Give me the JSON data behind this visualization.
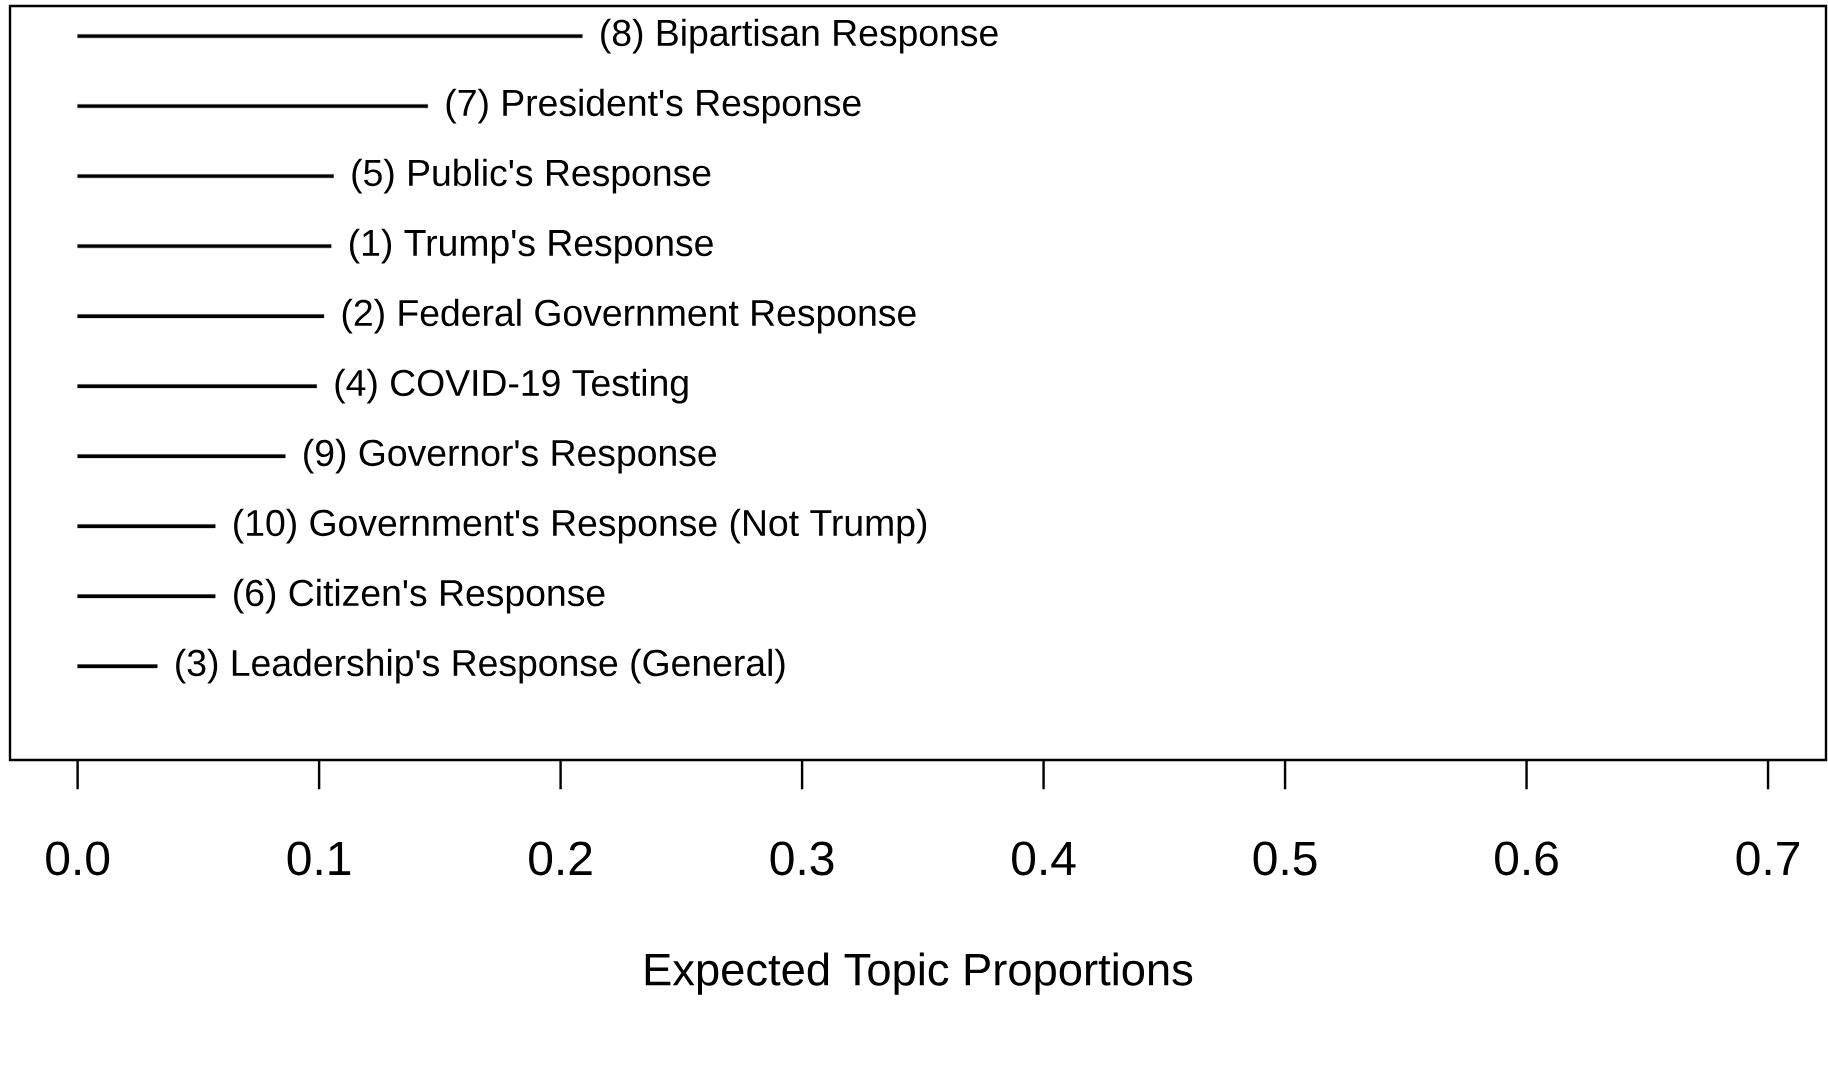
{
  "chart_data": {
    "type": "bar",
    "orientation": "horizontal",
    "xlabel": "Expected Topic Proportions",
    "categories": [
      "(8) Bipartisan Response",
      "(7) President's Response",
      "(5) Public's Response",
      "(1) Trump's Response",
      "(2) Federal Government Response",
      "(4) COVID-19 Testing",
      "(9) Governor's Response",
      "(10) Government's Response (Not Trump)",
      "(6) Citizen's Response",
      "(3) Leadership's Response (General)"
    ],
    "values": [
      0.209,
      0.145,
      0.106,
      0.105,
      0.102,
      0.099,
      0.086,
      0.057,
      0.057,
      0.033
    ],
    "color": "#000000",
    "xlim": [
      -0.028,
      0.724
    ],
    "xticks": [
      {
        "value": 0,
        "label": "0.0"
      },
      0.1,
      0.2,
      0.3,
      0.4,
      0.5,
      0.6,
      0.7
    ]
  }
}
